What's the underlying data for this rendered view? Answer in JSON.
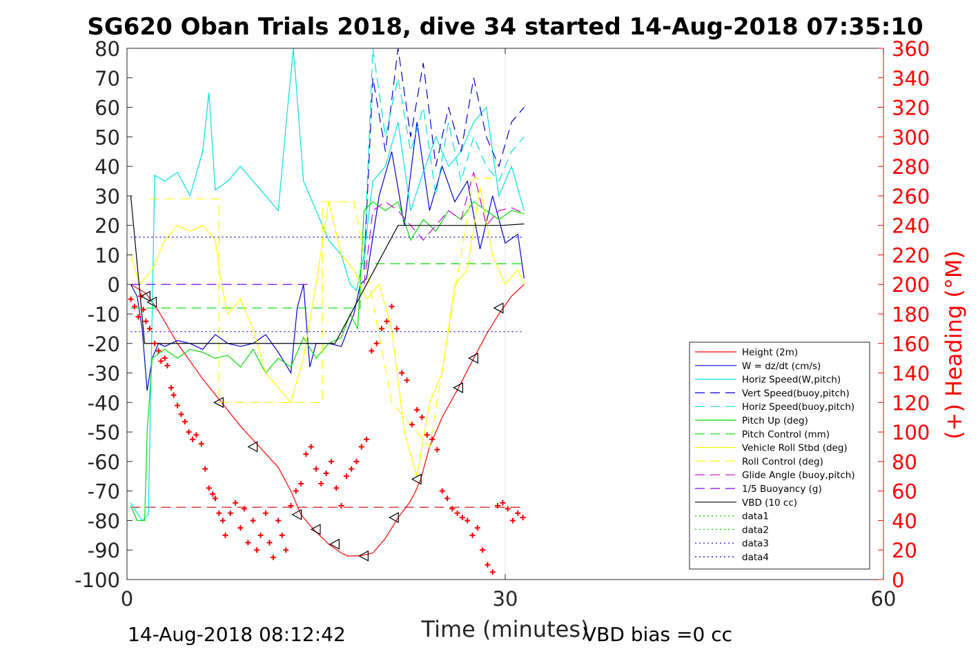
{
  "chart_data": {
    "type": "line",
    "title": "SG620 Oban Trials 2018, dive 34 started 14-Aug-2018 07:35:10",
    "xlabel": "Time (minutes)",
    "ylabel": "",
    "y2label": "(+) Heading (°M)",
    "xlim": [
      0,
      60
    ],
    "ylim": [
      -100,
      80
    ],
    "y2lim": [
      0,
      360
    ],
    "xticks": [
      "0",
      "30",
      "60"
    ],
    "yticks": [
      "80",
      "70",
      "60",
      "50",
      "40",
      "30",
      "20",
      "10",
      "0",
      "-10",
      "-20",
      "-30",
      "-40",
      "-50",
      "-60",
      "-70",
      "-80",
      "-90",
      "-100"
    ],
    "y2ticks": [
      "360",
      "340",
      "320",
      "300",
      "280",
      "260",
      "240",
      "220",
      "200",
      "180",
      "160",
      "140",
      "120",
      "100",
      "80",
      "60",
      "40",
      "20",
      "0"
    ],
    "grid": "x only at 30",
    "legend_position": "bottom-right",
    "footer_left": "14-Aug-2018 08:12:42",
    "footer_right": "VBD bias =0 cc",
    "colors": {
      "right_axis": "#ff0000",
      "axis": "#262626"
    },
    "series": [
      {
        "name": "Height (2m)",
        "color": "#ff0000",
        "style": "solid",
        "x": [
          0.3,
          1.5,
          2.5,
          4,
          6,
          7.5,
          9,
          10.5,
          12,
          13,
          13.8,
          14.8,
          16,
          17,
          17.5,
          18.5,
          19.5,
          20.5,
          21.5,
          22.4,
          22.9,
          23.3,
          24,
          25,
          26.3,
          27.5,
          28.5,
          29.5,
          30.5,
          31.5
        ],
        "y": [
          0,
          -3,
          -9,
          -20,
          -32,
          -40,
          -48,
          -55,
          -62,
          -70,
          -78,
          -83,
          -88,
          -91,
          -92,
          -92,
          -91,
          -86,
          -79,
          -74,
          -70,
          -66,
          -55,
          -45,
          -35,
          -25,
          -17,
          -10,
          -4,
          0
        ]
      },
      {
        "name": "W = dz/dt (cm/s)",
        "color": "#0000cc",
        "style": "solid",
        "x": [
          0.3,
          0.8,
          1.2,
          1.6,
          2.0,
          2.5,
          3,
          4,
          5,
          6,
          7,
          8,
          9,
          10,
          11,
          12,
          13,
          13.5,
          14,
          14.5,
          15,
          16,
          17,
          18,
          18.5,
          19,
          20,
          21,
          22,
          23,
          24,
          25,
          26,
          27,
          28,
          29,
          30,
          31,
          31.5
        ],
        "y": [
          0,
          -4,
          -15,
          -36,
          -25,
          -20,
          -21,
          -19,
          -20,
          -22,
          -17,
          -20,
          -21,
          -20,
          -17,
          -23,
          -30,
          -8,
          0,
          -28,
          -20,
          -20,
          -21,
          -10,
          0,
          2,
          30,
          45,
          20,
          55,
          25,
          40,
          28,
          35,
          12,
          30,
          14,
          17,
          2
        ]
      },
      {
        "name": "Horiz Speed(W,pitch)",
        "color": "#00e0e0",
        "style": "solid",
        "x": [
          0.3,
          1.2,
          1.7,
          2.2,
          3,
          4,
          5,
          6,
          6.5,
          7,
          8,
          9,
          10,
          11,
          12,
          12.7,
          13.2,
          14,
          15,
          16,
          17,
          17.7,
          18.2,
          18.8,
          19.5,
          20.5,
          21.5,
          22.5,
          23.5,
          24.5,
          25.5,
          26.5,
          27.5,
          28.5,
          29.5,
          30.5,
          31.5
        ],
        "y": [
          -74,
          -80,
          -78,
          37,
          35,
          38,
          30,
          45,
          65,
          32,
          35,
          40,
          35,
          30,
          25,
          58,
          80,
          35,
          25,
          15,
          10,
          0,
          -2,
          10,
          35,
          40,
          55,
          25,
          38,
          50,
          40,
          45,
          55,
          60,
          30,
          40,
          25
        ]
      },
      {
        "name": "Vert Speed(buoy,pitch)",
        "color": "#0000cc",
        "style": "dashed",
        "x": [
          18.8,
          19.5,
          20.5,
          21.5,
          22.5,
          23.5,
          24.5,
          25.5,
          26.5,
          27.5,
          28.5,
          29.5,
          30.5,
          31.5
        ],
        "y": [
          5,
          70,
          45,
          80,
          50,
          75,
          40,
          60,
          45,
          70,
          50,
          40,
          55,
          60
        ]
      },
      {
        "name": "Horiz Speed(buoy,pitch)",
        "color": "#00e0e0",
        "style": "dashed",
        "x": [
          18.8,
          19.5,
          20.5,
          21.5,
          22.5,
          23.5,
          24.5,
          25.5,
          26.5,
          27.5,
          28.5,
          29.5,
          30.5,
          31.5
        ],
        "y": [
          8,
          80,
          50,
          70,
          45,
          60,
          30,
          55,
          35,
          50,
          40,
          35,
          45,
          50
        ]
      },
      {
        "name": "Pitch Up (deg)",
        "color": "#00dd00",
        "style": "solid",
        "x": [
          0.3,
          0.8,
          1.4,
          1.6,
          2.0,
          3,
          4,
          5,
          6,
          7,
          8,
          9,
          10,
          11,
          12,
          13,
          14,
          15,
          16,
          17,
          17.7,
          18.3,
          18.8,
          19.5,
          20.5,
          21.5,
          22.5,
          23.5,
          24.5,
          25.5,
          26.5,
          27.5,
          28.5,
          29.5,
          30.5,
          31.5
        ],
        "y": [
          -75,
          -80,
          -80,
          -50,
          -25,
          -22,
          -25,
          -22,
          -23,
          -25,
          -24,
          -28,
          -22,
          -30,
          -25,
          -28,
          -18,
          -25,
          -20,
          -18,
          -10,
          -15,
          25,
          28,
          25,
          28,
          15,
          22,
          18,
          25,
          22,
          28,
          25,
          22,
          25,
          24
        ]
      },
      {
        "name": "Pitch Control (mm)",
        "color": "#00dd00",
        "style": "dashed",
        "x": [
          0.3,
          18.5,
          18.5,
          31.5
        ],
        "y": [
          -8,
          -8,
          7,
          7
        ]
      },
      {
        "name": "Vehicle Roll Stbd (deg)",
        "color": "#ffff00",
        "style": "solid",
        "x": [
          0.3,
          1,
          2,
          3,
          4,
          5,
          6,
          7,
          7.5,
          8,
          9,
          10,
          11,
          12,
          13,
          14,
          15,
          16,
          17,
          18,
          19,
          20,
          21,
          22,
          23,
          24,
          25,
          26,
          27,
          28,
          29,
          30,
          31,
          31.5
        ],
        "y": [
          10,
          0,
          5,
          15,
          20,
          18,
          20,
          15,
          0,
          -10,
          -5,
          -15,
          -30,
          -35,
          -40,
          -25,
          0,
          28,
          10,
          5,
          -5,
          0,
          -15,
          -50,
          -65,
          -40,
          -30,
          0,
          5,
          33,
          10,
          0,
          5,
          0
        ]
      },
      {
        "name": "Roll Control (deg)",
        "color": "#ffff00",
        "style": "dashed",
        "x": [
          1.8,
          7.3,
          7.3,
          15.5,
          15.5,
          18,
          21,
          21,
          24,
          24,
          27.5,
          29
        ],
        "y": [
          29,
          29,
          -40,
          -40,
          28,
          28,
          -40,
          -40,
          -55,
          -55,
          36,
          36
        ]
      },
      {
        "name": "Glide Angle (buoy,pitch)",
        "color": "#cc00cc",
        "style": "dashed",
        "x": [
          18.8,
          19.5,
          20.5,
          21.5,
          22.5,
          23.5,
          24.5,
          25.5,
          26.5,
          27.5,
          28.5,
          29.5,
          30.5,
          31.5
        ],
        "y": [
          0,
          25,
          28,
          25,
          20,
          15,
          20,
          25,
          22,
          38,
          20,
          25,
          26,
          24
        ]
      },
      {
        "name": "1/5 Buoyancy (g)",
        "color": "#8000ff",
        "style": "dashed",
        "x": [
          0.3,
          14.5
        ],
        "y": [
          0,
          0
        ]
      },
      {
        "name": "VBD (10 cc)",
        "color": "#000000",
        "style": "solid",
        "x": [
          0.3,
          1.4,
          16.5,
          21.5,
          29.8,
          31.5
        ],
        "y": [
          30,
          -20,
          -20,
          20,
          20,
          20.5
        ]
      },
      {
        "name": "data1",
        "color": "#00dd00",
        "style": "dotted",
        "x": [],
        "y": []
      },
      {
        "name": "data2",
        "color": "#00dd00",
        "style": "dotted",
        "x": [],
        "y": []
      },
      {
        "name": "data3",
        "color": "#0000cc",
        "style": "dotted",
        "x": [
          0.3,
          31.5
        ],
        "y": [
          16,
          16
        ]
      },
      {
        "name": "data4",
        "color": "#0000cc",
        "style": "dotted",
        "x": [
          0.3,
          31.5
        ],
        "y": [
          -16,
          -16
        ]
      }
    ],
    "unlabeled_lines": [
      {
        "color": "#cc0000",
        "style": "dashed",
        "x": [
          0.3,
          31.5
        ],
        "y": [
          -75.5,
          -75.5
        ]
      }
    ],
    "heading_points": {
      "color": "#ff0000",
      "marker": "+",
      "axis": "right",
      "x": [
        0.3,
        0.6,
        0.9,
        1.1,
        1.3,
        1.5,
        1.8,
        2.2,
        2.5,
        2.7,
        3.0,
        3.2,
        3.5,
        3.7,
        4.0,
        4.3,
        4.6,
        4.9,
        5.2,
        5.5,
        5.9,
        6.2,
        6.5,
        6.8,
        7.0,
        7.3,
        7.6,
        7.8,
        8.2,
        8.6,
        9.0,
        9.3,
        9.6,
        10.0,
        10.3,
        10.6,
        11.0,
        11.3,
        11.6,
        12.0,
        12.3,
        12.6,
        13.0,
        13.4,
        13.8,
        14.2,
        14.6,
        15.0,
        15.4,
        15.8,
        16.2,
        16.6,
        17.0,
        17.4,
        17.8,
        18.2,
        18.6,
        19.0,
        19.4,
        19.8,
        20.2,
        20.6,
        21.0,
        21.4,
        21.8,
        22.2,
        22.6,
        23.0,
        23.4,
        23.8,
        24.2,
        24.6,
        25.0,
        25.4,
        25.8,
        26.2,
        26.6,
        27.0,
        27.4,
        27.8,
        28.2,
        28.6,
        29.0,
        29.4,
        29.8,
        30.2,
        30.6,
        31.0,
        31.4
      ],
      "y": [
        190,
        185,
        178,
        192,
        183,
        175,
        170,
        160,
        155,
        148,
        150,
        145,
        130,
        125,
        118,
        112,
        107,
        100,
        95,
        98,
        92,
        75,
        62,
        58,
        55,
        45,
        40,
        30,
        45,
        52,
        35,
        48,
        25,
        40,
        20,
        30,
        45,
        25,
        15,
        40,
        30,
        20,
        50,
        60,
        65,
        85,
        90,
        75,
        65,
        72,
        80,
        62,
        50,
        70,
        75,
        80,
        90,
        95,
        155,
        160,
        170,
        175,
        185,
        170,
        140,
        135,
        105,
        115,
        110,
        98,
        95,
        88,
        60,
        55,
        48,
        45,
        42,
        40,
        30,
        35,
        20,
        10,
        5,
        50,
        52,
        48,
        40,
        45,
        42
      ]
    },
    "triangle_markers": {
      "color": "#000000",
      "x": [
        1.5,
        2.0,
        7.3,
        10.0,
        13.5,
        15.0,
        16.5,
        18.8,
        21.2,
        23.0,
        26.3,
        27.5,
        29.5
      ],
      "y": [
        -4,
        -6,
        -40,
        -55,
        -78,
        -83,
        -88,
        -92,
        -79,
        -66,
        -35,
        -25,
        -8
      ]
    }
  }
}
